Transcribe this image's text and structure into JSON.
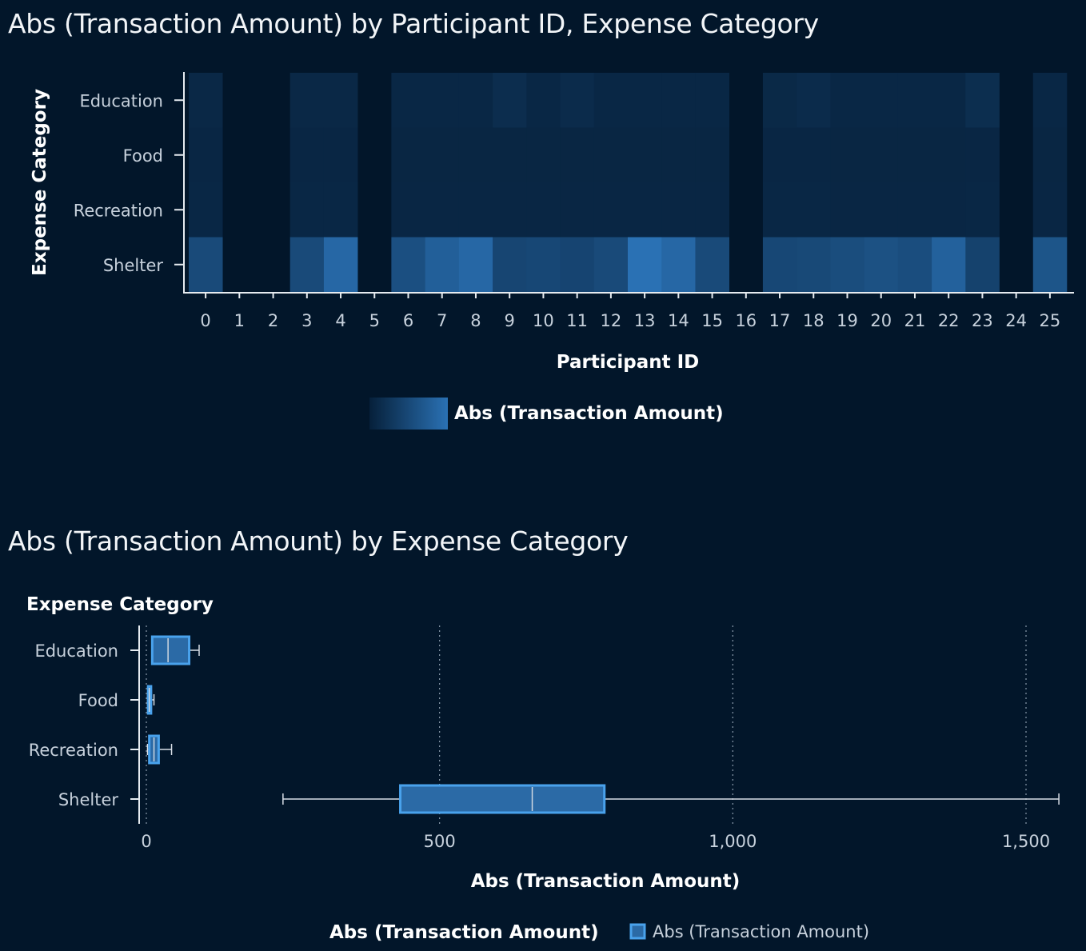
{
  "colors": {
    "background": "#02162a",
    "heat_low": "#06203a",
    "heat_high": "#2a71b4",
    "box_fill": "#2b6aa6",
    "box_stroke": "#49a2ec",
    "axis": "#e6ebf0",
    "grid": "#8a9aab"
  },
  "chart_data": [
    {
      "type": "heatmap",
      "title": "Abs (Transaction Amount) by Participant ID, Expense Category",
      "xlabel": "Participant ID",
      "ylabel": "Expense Category",
      "x": [
        "0",
        "1",
        "2",
        "3",
        "4",
        "5",
        "6",
        "7",
        "8",
        "9",
        "10",
        "11",
        "12",
        "13",
        "14",
        "15",
        "16",
        "17",
        "18",
        "19",
        "20",
        "21",
        "22",
        "23",
        "24",
        "25"
      ],
      "y": [
        "Education",
        "Food",
        "Recreation",
        "Shelter"
      ],
      "intensity": [
        [
          0.1,
          null,
          null,
          0.1,
          0.1,
          null,
          0.09,
          0.09,
          0.09,
          0.16,
          0.09,
          0.14,
          0.09,
          0.09,
          0.09,
          0.09,
          null,
          0.11,
          0.14,
          0.09,
          0.09,
          0.09,
          0.09,
          0.17,
          null,
          0.09
        ],
        [
          0.08,
          null,
          null,
          0.08,
          0.08,
          null,
          0.07,
          0.07,
          0.07,
          0.07,
          0.07,
          0.07,
          0.07,
          0.07,
          0.07,
          0.07,
          null,
          0.08,
          0.08,
          0.07,
          0.07,
          0.07,
          0.07,
          0.08,
          null,
          0.07
        ],
        [
          0.09,
          null,
          null,
          0.09,
          0.09,
          null,
          0.08,
          0.08,
          0.08,
          0.08,
          0.08,
          0.08,
          0.08,
          0.08,
          0.08,
          0.08,
          null,
          0.09,
          0.09,
          0.08,
          0.08,
          0.08,
          0.08,
          0.09,
          null,
          0.08
        ],
        [
          0.52,
          null,
          null,
          0.52,
          0.88,
          null,
          0.58,
          0.78,
          0.88,
          0.46,
          0.48,
          0.45,
          0.52,
          1.0,
          0.88,
          0.52,
          null,
          0.48,
          0.5,
          0.55,
          0.6,
          0.56,
          0.8,
          0.42,
          null,
          0.65
        ]
      ],
      "legend_title": "Abs (Transaction Amount)"
    },
    {
      "type": "box",
      "title": "Abs (Transaction Amount) by Expense Category",
      "xlabel": "Abs (Transaction Amount)",
      "ylabel": "Expense Category",
      "xlim": [
        -13,
        1560
      ],
      "xticks": [
        0,
        500,
        1000,
        1500
      ],
      "xtick_labels": [
        "0",
        "500",
        "1,000",
        "1,500"
      ],
      "series": [
        {
          "category": "Education",
          "min": 10,
          "q1": 10,
          "median": 37,
          "q3": 73,
          "max": 90
        },
        {
          "category": "Food",
          "min": 2,
          "q1": 3,
          "median": 5,
          "q3": 8,
          "max": 13
        },
        {
          "category": "Recreation",
          "min": 2,
          "q1": 5,
          "median": 13,
          "q3": 21,
          "max": 43
        },
        {
          "category": "Shelter",
          "min": 233,
          "q1": 433,
          "median": 658,
          "q3": 781,
          "max": 1556
        }
      ],
      "legend_title": "Abs (Transaction Amount)",
      "legend_item": "Abs (Transaction Amount)"
    }
  ]
}
